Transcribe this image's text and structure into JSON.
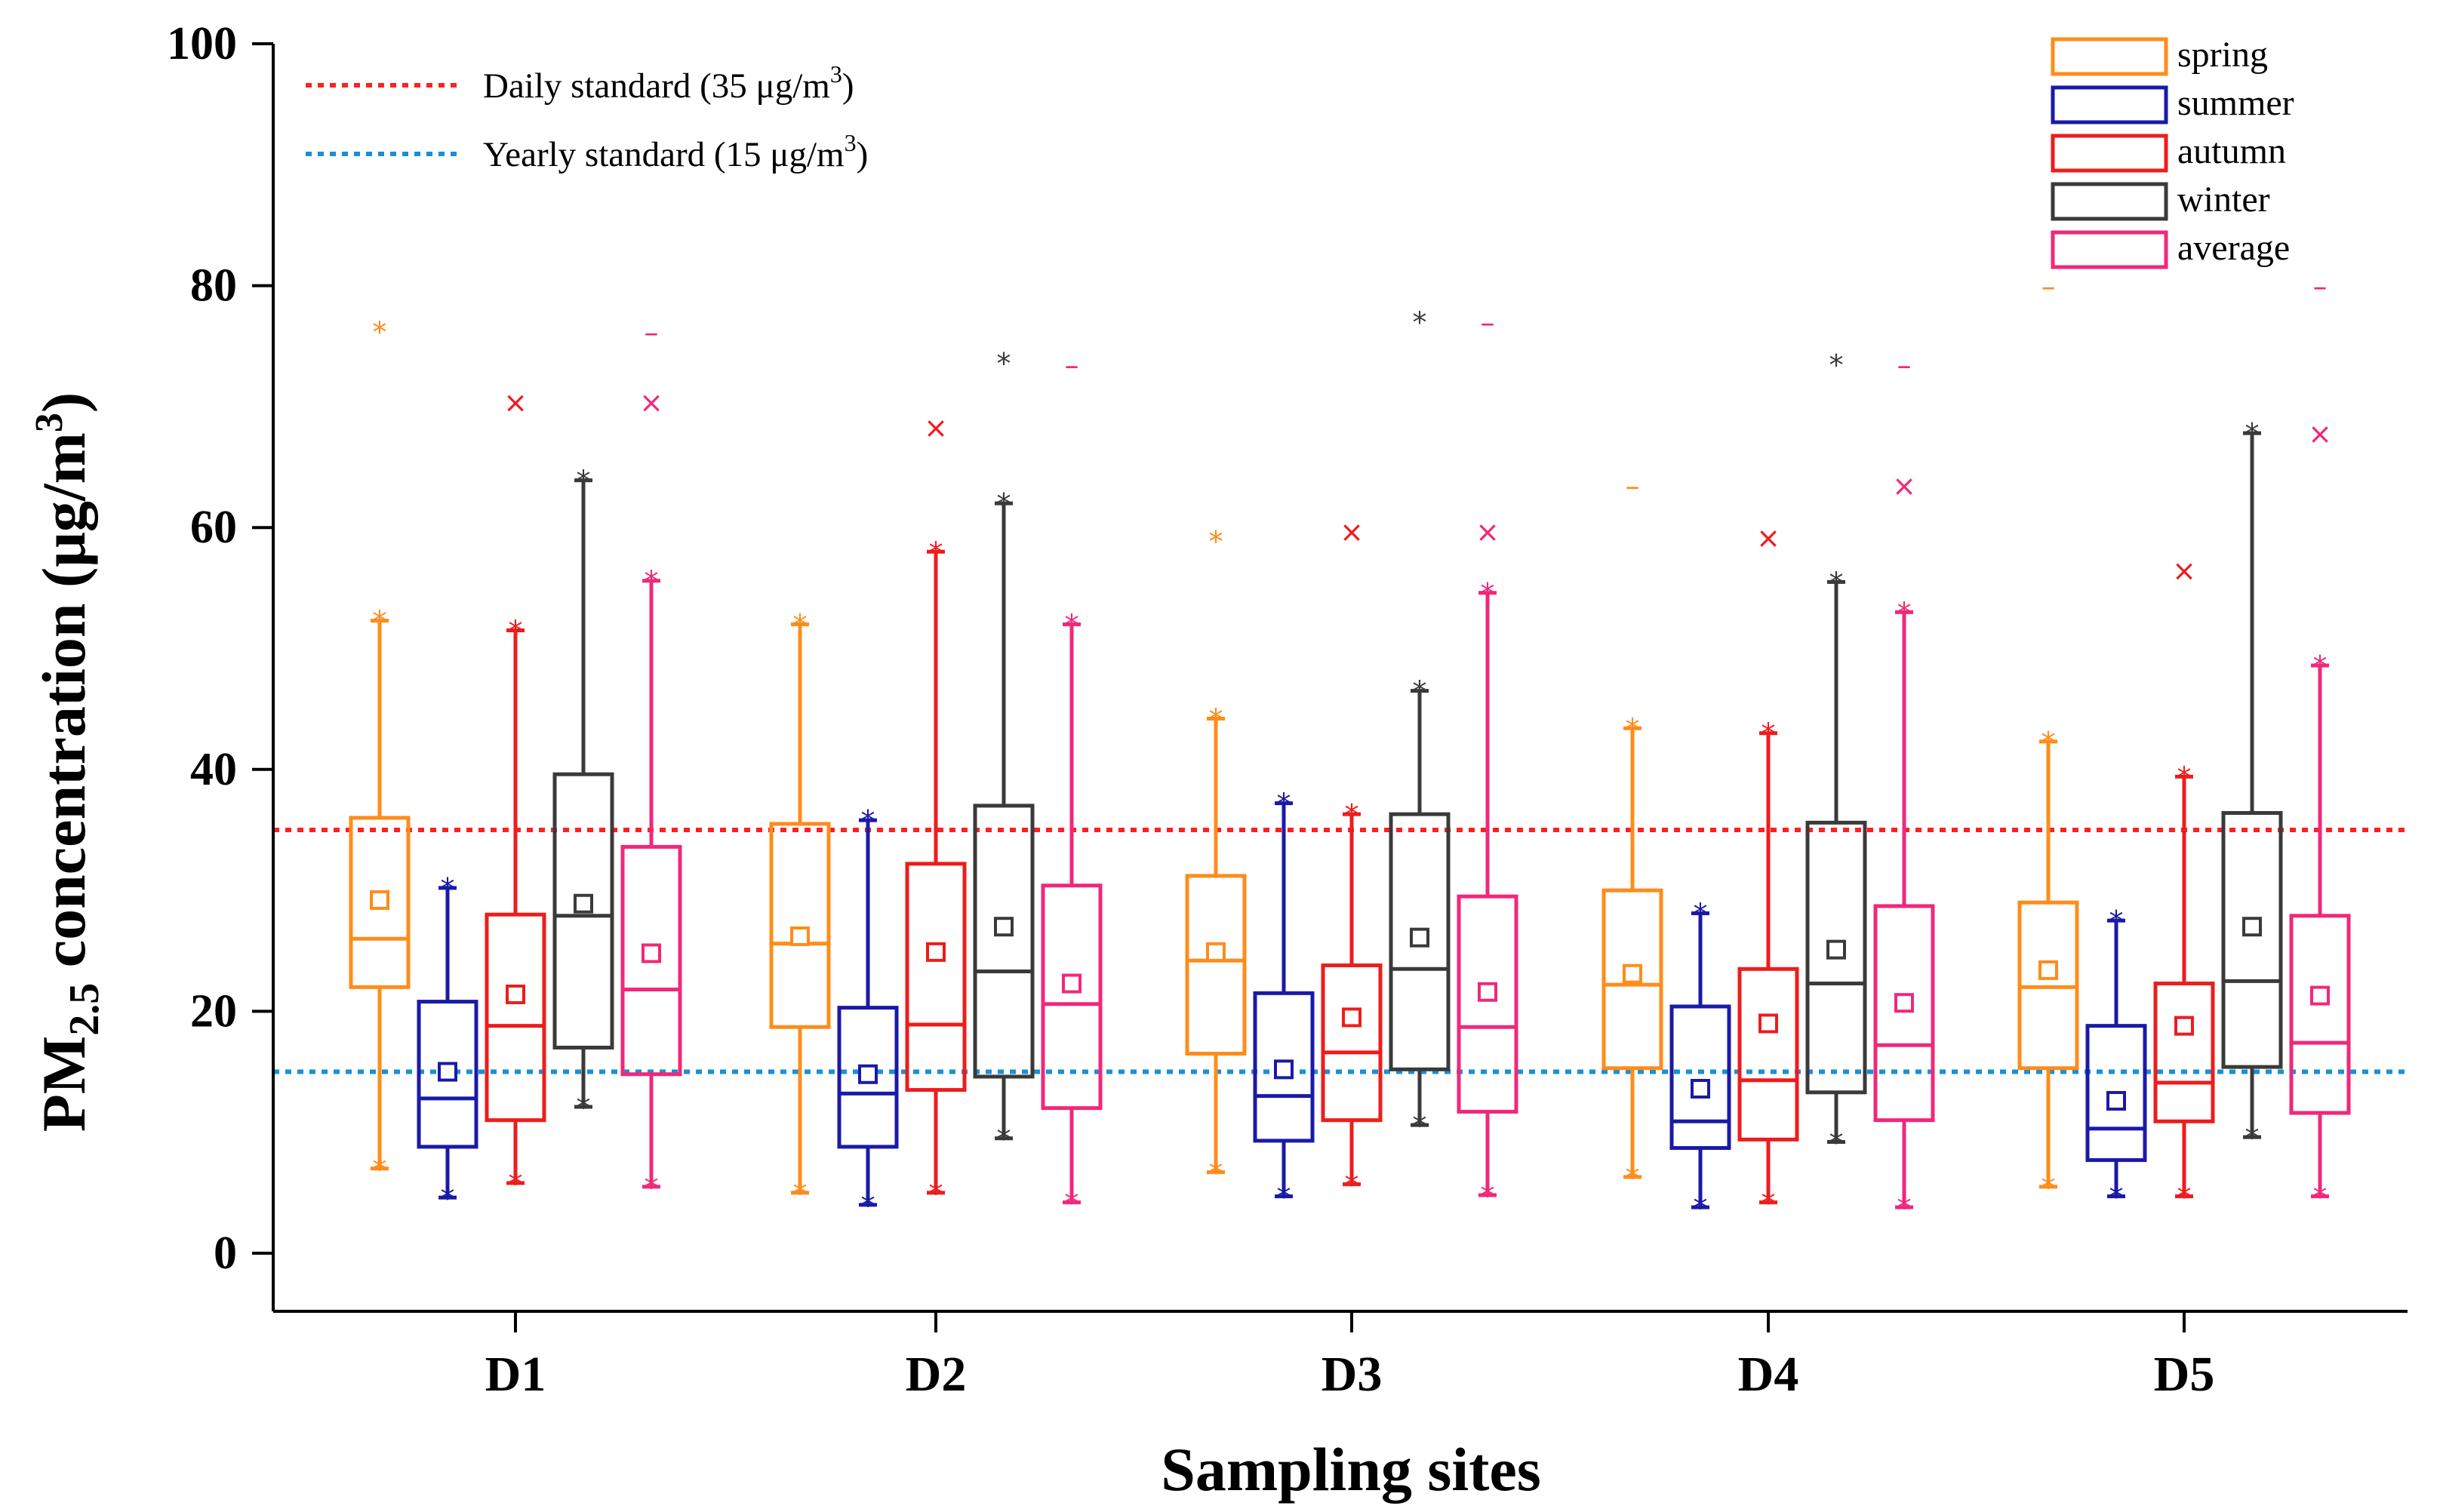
{
  "chart_data": {
    "type": "boxplot",
    "xlabel": "Sampling sites",
    "ylabel_main": "PM",
    "ylabel_sub": "2.5",
    "ylabel_rest": " concentration (μg/m",
    "ylabel_sup": "3",
    "ylabel_end": ")",
    "ylim": [
      0,
      100
    ],
    "yticks": [
      0,
      20,
      40,
      60,
      80,
      100
    ],
    "categories": [
      "D1",
      "D2",
      "D3",
      "D4",
      "D5"
    ],
    "reference_lines": [
      {
        "label": "Daily standard (35 μg/m",
        "sup": "3",
        "end": ")",
        "value": 35,
        "color": "#ff2020"
      },
      {
        "label": "Yearly standard (15 μg/m",
        "sup": "3",
        "end": ")",
        "value": 15,
        "color": "#1a8fd6"
      }
    ],
    "series": [
      {
        "name": "spring",
        "color": "#ff8c1a",
        "stats": [
          {
            "q1": 22,
            "median": 26,
            "q3": 36,
            "whisker_low": 7,
            "whisker_high": 52.3,
            "mean": 29.2,
            "min": 7,
            "max": 76.2
          },
          {
            "q1": 18.7,
            "median": 25.6,
            "q3": 35.5,
            "whisker_low": 5,
            "whisker_high": 52,
            "mean": 26.2,
            "min": 5,
            "max": 52
          },
          {
            "q1": 16.5,
            "median": 24.2,
            "q3": 31.2,
            "whisker_low": 6.7,
            "whisker_high": 44.2,
            "mean": 24.9,
            "min": 6.7,
            "max": 58.9
          },
          {
            "q1": 15.3,
            "median": 22.2,
            "q3": 30,
            "whisker_low": 6.3,
            "whisker_high": 43.4,
            "mean": 23.1,
            "min": 6.3,
            "max": 63.5
          },
          {
            "q1": 15.3,
            "median": 22,
            "q3": 29,
            "whisker_low": 5.5,
            "whisker_high": 42.3,
            "mean": 23.4,
            "min": 5.5,
            "max": 80
          }
        ]
      },
      {
        "name": "summer",
        "color": "#1a1aa8",
        "stats": [
          {
            "q1": 8.8,
            "median": 12.8,
            "q3": 20.8,
            "whisker_low": 4.6,
            "whisker_high": 30.2,
            "mean": 15,
            "min": 4.6,
            "max": 30.2
          },
          {
            "q1": 8.8,
            "median": 13.2,
            "q3": 20.3,
            "whisker_low": 4,
            "whisker_high": 35.8,
            "mean": 14.8,
            "min": 4,
            "max": 35.8
          },
          {
            "q1": 9.3,
            "median": 13,
            "q3": 21.5,
            "whisker_low": 4.7,
            "whisker_high": 37.2,
            "mean": 15.2,
            "min": 4.7,
            "max": 37.2
          },
          {
            "q1": 8.7,
            "median": 10.9,
            "q3": 20.4,
            "whisker_low": 3.8,
            "whisker_high": 28.1,
            "mean": 13.6,
            "min": 3.8,
            "max": 28.1
          },
          {
            "q1": 7.7,
            "median": 10.3,
            "q3": 18.8,
            "whisker_low": 4.7,
            "whisker_high": 27.5,
            "mean": 12.6,
            "min": 4.7,
            "max": 27.5
          }
        ]
      },
      {
        "name": "autumn",
        "color": "#ee1c1c",
        "stats": [
          {
            "q1": 11,
            "median": 18.8,
            "q3": 28,
            "whisker_low": 5.8,
            "whisker_high": 51.5,
            "mean": 21.4,
            "min": 5.8,
            "max": 70.4
          },
          {
            "q1": 13.5,
            "median": 18.9,
            "q3": 32.2,
            "whisker_low": 5,
            "whisker_high": 58,
            "mean": 24.9,
            "min": 5,
            "max": 68.3
          },
          {
            "q1": 11,
            "median": 16.6,
            "q3": 23.8,
            "whisker_low": 5.7,
            "whisker_high": 36.3,
            "mean": 19.5,
            "min": 5.7,
            "max": 59.7
          },
          {
            "q1": 9.4,
            "median": 14.3,
            "q3": 23.5,
            "whisker_low": 4.2,
            "whisker_high": 43,
            "mean": 19,
            "min": 4.2,
            "max": 59.2
          },
          {
            "q1": 10.9,
            "median": 14.1,
            "q3": 22.3,
            "whisker_low": 4.7,
            "whisker_high": 39.4,
            "mean": 18.8,
            "min": 4.7,
            "max": 56.5
          }
        ]
      },
      {
        "name": "winter",
        "color": "#3a3a3a",
        "stats": [
          {
            "q1": 17,
            "median": 27.9,
            "q3": 39.6,
            "whisker_low": 12.1,
            "whisker_high": 63.9,
            "mean": 28.9,
            "min": 12.1,
            "max": 63.9
          },
          {
            "q1": 14.6,
            "median": 23.3,
            "q3": 37,
            "whisker_low": 9.5,
            "whisker_high": 62,
            "mean": 27,
            "min": 9.5,
            "max": 73.6
          },
          {
            "q1": 15.2,
            "median": 23.5,
            "q3": 36.3,
            "whisker_low": 10.6,
            "whisker_high": 46.5,
            "mean": 26.1,
            "min": 10.6,
            "max": 77
          },
          {
            "q1": 13.3,
            "median": 22.3,
            "q3": 35.6,
            "whisker_low": 9.2,
            "whisker_high": 55.5,
            "mean": 25.1,
            "min": 9.2,
            "max": 73.5
          },
          {
            "q1": 15.4,
            "median": 22.5,
            "q3": 36.4,
            "whisker_low": 9.6,
            "whisker_high": 67.8,
            "mean": 27,
            "min": 9.6,
            "max": 67.8
          }
        ]
      },
      {
        "name": "average",
        "color": "#f0287a",
        "stats": [
          {
            "q1": 14.8,
            "median": 21.8,
            "q3": 33.6,
            "whisker_low": 5.5,
            "whisker_high": 55.6,
            "mean": 24.8,
            "min": 5.5,
            "max": 76.2
          },
          {
            "q1": 12,
            "median": 20.6,
            "q3": 30.4,
            "whisker_low": 4.2,
            "whisker_high": 52,
            "mean": 22.3,
            "min": 4.2,
            "max": 73.5
          },
          {
            "q1": 11.7,
            "median": 18.7,
            "q3": 29.5,
            "whisker_low": 4.8,
            "whisker_high": 54.6,
            "mean": 21.6,
            "min": 4.8,
            "max": 77
          },
          {
            "q1": 11,
            "median": 17.2,
            "q3": 28.7,
            "whisker_low": 3.8,
            "whisker_high": 53,
            "mean": 20.7,
            "min": 3.8,
            "max": 73.5
          },
          {
            "q1": 11.6,
            "median": 17.4,
            "q3": 27.9,
            "whisker_low": 4.7,
            "whisker_high": 48.6,
            "mean": 21.3,
            "min": 4.7,
            "max": 80
          }
        ]
      }
    ],
    "outliers": [
      {
        "series": "spring",
        "site": "D1",
        "value": 76.2,
        "symbol": "*"
      },
      {
        "series": "autumn",
        "site": "D1",
        "value": 70.4,
        "symbol": "x"
      },
      {
        "series": "average",
        "site": "D1",
        "value": 76.2,
        "symbol": "-"
      },
      {
        "series": "average",
        "site": "D1",
        "value": 70.4,
        "symbol": "x"
      },
      {
        "series": "autumn",
        "site": "D2",
        "value": 68.3,
        "symbol": "x"
      },
      {
        "series": "winter",
        "site": "D2",
        "value": 73.6,
        "symbol": "*"
      },
      {
        "series": "average",
        "site": "D2",
        "value": 73.5,
        "symbol": "-"
      },
      {
        "series": "spring",
        "site": "D3",
        "value": 58.9,
        "symbol": "*"
      },
      {
        "series": "autumn",
        "site": "D3",
        "value": 59.7,
        "symbol": "x"
      },
      {
        "series": "winter",
        "site": "D3",
        "value": 77,
        "symbol": "*"
      },
      {
        "series": "average",
        "site": "D3",
        "value": 77,
        "symbol": "-"
      },
      {
        "series": "average",
        "site": "D3",
        "value": 59.7,
        "symbol": "x"
      },
      {
        "series": "spring",
        "site": "D4",
        "value": 63.5,
        "symbol": "-"
      },
      {
        "series": "autumn",
        "site": "D4",
        "value": 59.2,
        "symbol": "x"
      },
      {
        "series": "winter",
        "site": "D4",
        "value": 73.5,
        "symbol": "*"
      },
      {
        "series": "average",
        "site": "D4",
        "value": 73.5,
        "symbol": "-"
      },
      {
        "series": "average",
        "site": "D4",
        "value": 63.5,
        "symbol": "x"
      },
      {
        "series": "spring",
        "site": "D5",
        "value": 80,
        "symbol": "-"
      },
      {
        "series": "autumn",
        "site": "D5",
        "value": 56.5,
        "symbol": "x"
      },
      {
        "series": "average",
        "site": "D5",
        "value": 80,
        "symbol": "-"
      },
      {
        "series": "average",
        "site": "D5",
        "value": 67.8,
        "symbol": "x"
      }
    ]
  }
}
